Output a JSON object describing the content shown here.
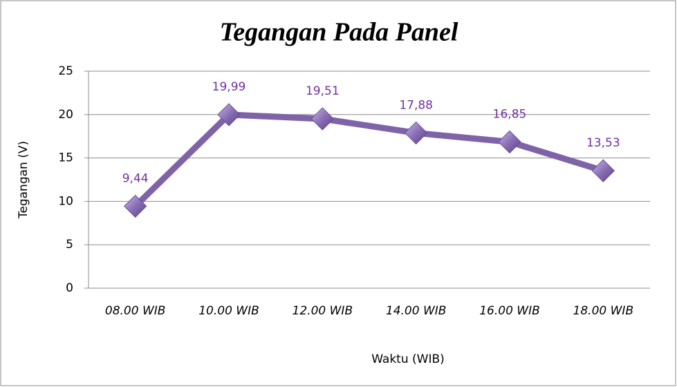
{
  "chart_data": {
    "type": "line",
    "title": "Tegangan Pada Panel",
    "xlabel": "Waktu (WIB)",
    "ylabel": "Tegangan (V)",
    "categories": [
      "08.00 WIB",
      "10.00 WIB",
      "12.00 WIB",
      "14.00 WIB",
      "16.00 WIB",
      "18.00 WIB"
    ],
    "values": [
      9.44,
      19.99,
      19.51,
      17.88,
      16.85,
      13.53
    ],
    "value_labels": [
      "9,44",
      "19,99",
      "19,51",
      "17,88",
      "16,85",
      "13,53"
    ],
    "color": "#7f63a8",
    "label_color": "#7030a0",
    "ylim": [
      0,
      25
    ],
    "yticks": [
      0,
      5,
      10,
      15,
      20,
      25
    ],
    "grid": true
  }
}
